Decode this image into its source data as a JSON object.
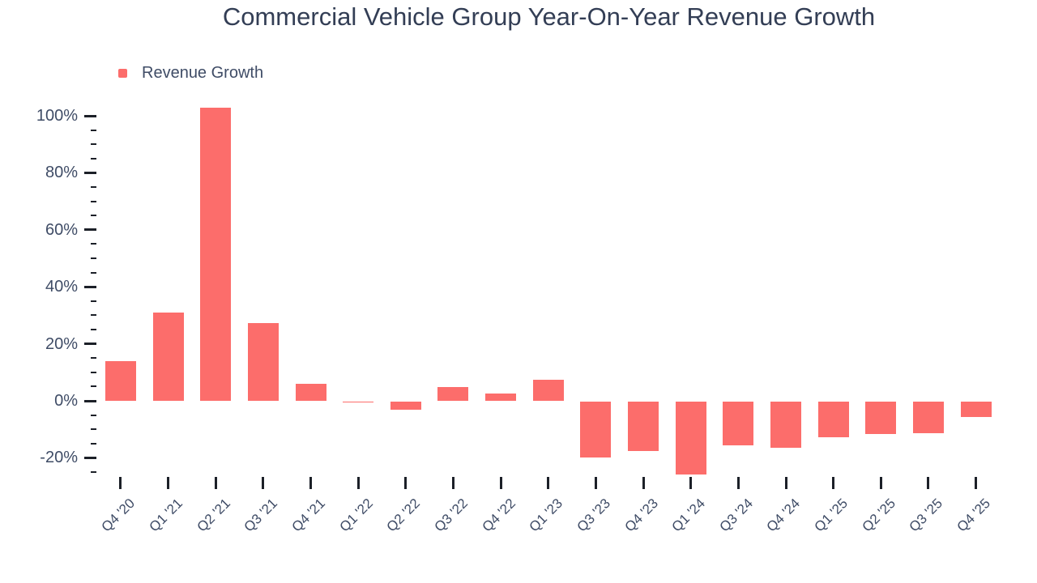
{
  "title": "Commercial Vehicle Group Year-On-Year Revenue Growth",
  "legend": {
    "label": "Revenue Growth"
  },
  "colors": {
    "bar": "#fc6d6b",
    "title_text": "#333e55",
    "axis_text": "#3f4c66",
    "tick": "#1c2028"
  },
  "chart_data": {
    "type": "bar",
    "title": "Commercial Vehicle Group Year-On-Year Revenue Growth",
    "xlabel": "",
    "ylabel": "",
    "categories": [
      "Q4 '20",
      "Q1 '21",
      "Q2 '21",
      "Q3 '21",
      "Q4 '21",
      "Q1 '22",
      "Q2 '22",
      "Q3 '22",
      "Q4 '22",
      "Q1 '23",
      "Q3 '23",
      "Q4 '23",
      "Q1 '24",
      "Q3 '24",
      "Q4 '24",
      "Q1 '25",
      "Q2 '25",
      "Q3 '25",
      "Q4 '25"
    ],
    "series": [
      {
        "name": "Revenue Growth",
        "color": "#fc6d6b",
        "values": [
          13.9,
          31,
          102.9,
          27.4,
          5.9,
          -0.4,
          -2.9,
          4.7,
          2.6,
          7.4,
          -19.5,
          -17.4,
          -25.6,
          -15.4,
          -16.1,
          -12.6,
          -11.3,
          -11.2,
          -5.3
        ]
      }
    ],
    "value_unit": "%",
    "ylim": [
      -27,
      105
    ],
    "y_ticks": [
      {
        "value": 100,
        "label": "100%"
      },
      {
        "value": 80,
        "label": "80%"
      },
      {
        "value": 60,
        "label": "60%"
      },
      {
        "value": 40,
        "label": "40%"
      },
      {
        "value": 20,
        "label": "20%"
      },
      {
        "value": 0,
        "label": "0%"
      },
      {
        "value": -20,
        "label": "-20%"
      }
    ],
    "y_minor_ticks": {
      "min": -25,
      "max": 100,
      "step": 5
    },
    "grid": false,
    "legend_position": "top-left"
  }
}
